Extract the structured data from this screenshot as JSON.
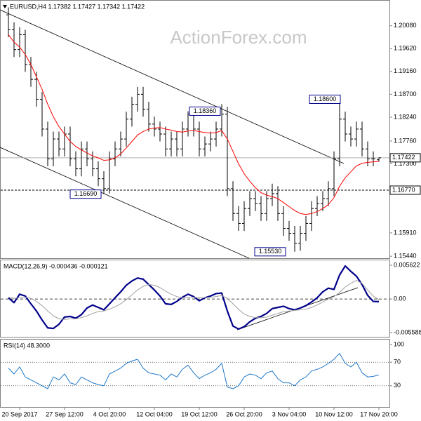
{
  "chart_data": [
    {
      "type": "ohlc",
      "title": "EURUSD,H4  1.17382 1.17427 1.17342 1.17422",
      "watermark": "ActionForex.com",
      "color": "#000000",
      "categories": [
        null,
        null,
        "20 Sep 2017",
        null,
        null,
        null,
        null,
        null,
        null,
        null,
        "27 Sep 12:00",
        null,
        null,
        null,
        null,
        null,
        null,
        null,
        "4 Oct 20:00",
        null,
        null,
        null,
        null,
        null,
        null,
        null,
        "12 Oct 04:00",
        null,
        null,
        null,
        null,
        null,
        null,
        null,
        "19 Oct 12:00",
        null,
        null,
        null,
        null,
        null,
        null,
        null,
        "26 Oct 20:00",
        null,
        null,
        null,
        null,
        null,
        null,
        null,
        "3 Nov 04:00",
        null,
        null,
        null,
        null,
        null,
        null,
        null,
        "10 Nov 12:00",
        null,
        null,
        null,
        null,
        null,
        null,
        null,
        "17 Nov 20:00"
      ],
      "open": [
        1.203,
        1.2,
        1.196,
        1.199,
        1.193,
        1.19,
        1.186,
        1.18,
        1.174,
        1.178,
        1.176,
        1.179,
        1.174,
        1.172,
        1.176,
        1.174,
        1.172,
        1.17,
        1.168,
        1.174,
        1.176,
        1.178,
        1.182,
        1.185,
        1.187,
        1.184,
        1.181,
        1.18,
        1.179,
        1.176,
        1.178,
        1.176,
        1.18,
        1.183,
        1.18,
        1.176,
        1.177,
        1.178,
        1.18,
        1.183,
        1.168,
        1.163,
        1.161,
        1.164,
        1.166,
        1.165,
        1.163,
        1.166,
        1.167,
        1.163,
        1.16,
        1.159,
        1.157,
        1.159,
        1.161,
        1.164,
        1.165,
        1.166,
        1.168,
        1.174,
        1.182,
        1.179,
        1.178,
        1.18,
        1.176,
        1.174,
        1.17382
      ],
      "high": [
        1.2045,
        1.2015,
        1.2005,
        1.2,
        1.1945,
        1.1915,
        1.1875,
        1.1815,
        1.1795,
        1.1795,
        1.1805,
        1.1805,
        1.1755,
        1.1775,
        1.1775,
        1.1755,
        1.1735,
        1.1715,
        1.1755,
        1.1775,
        1.1795,
        1.1835,
        1.1865,
        1.1885,
        1.1885,
        1.1855,
        1.1825,
        1.1815,
        1.1805,
        1.1795,
        1.1795,
        1.1815,
        1.1836,
        1.1845,
        1.1815,
        1.1785,
        1.1795,
        1.1815,
        1.185,
        1.1845,
        1.1695,
        1.1645,
        1.1655,
        1.1675,
        1.1675,
        1.1665,
        1.1675,
        1.169,
        1.1685,
        1.1645,
        1.1615,
        1.1605,
        1.1605,
        1.1625,
        1.1655,
        1.1665,
        1.1675,
        1.1695,
        1.1755,
        1.186,
        1.1835,
        1.1805,
        1.1815,
        1.1815,
        1.1775,
        1.1755,
        1.17427
      ],
      "low": [
        1.1985,
        1.1945,
        1.1945,
        1.1915,
        1.1885,
        1.1845,
        1.1785,
        1.1725,
        1.1725,
        1.1745,
        1.1745,
        1.1725,
        1.1705,
        1.1705,
        1.1725,
        1.1705,
        1.1685,
        1.1669,
        1.167,
        1.1725,
        1.1745,
        1.1765,
        1.1805,
        1.1835,
        1.1825,
        1.1795,
        1.1785,
        1.1775,
        1.1745,
        1.1745,
        1.1745,
        1.1745,
        1.1785,
        1.1785,
        1.1745,
        1.1745,
        1.1755,
        1.1765,
        1.1785,
        1.1665,
        1.1615,
        1.1595,
        1.1595,
        1.1625,
        1.1635,
        1.1615,
        1.1615,
        1.1645,
        1.1615,
        1.1585,
        1.1575,
        1.1553,
        1.1555,
        1.1575,
        1.1595,
        1.1625,
        1.1635,
        1.1645,
        1.1665,
        1.1725,
        1.1775,
        1.1765,
        1.1765,
        1.1745,
        1.1725,
        1.1725,
        1.17342
      ],
      "close": [
        1.2,
        1.196,
        1.199,
        1.193,
        1.19,
        1.186,
        1.18,
        1.174,
        1.178,
        1.176,
        1.179,
        1.174,
        1.172,
        1.176,
        1.174,
        1.172,
        1.17,
        1.168,
        1.174,
        1.176,
        1.178,
        1.182,
        1.185,
        1.187,
        1.184,
        1.181,
        1.18,
        1.179,
        1.176,
        1.178,
        1.176,
        1.18,
        1.183,
        1.18,
        1.176,
        1.177,
        1.178,
        1.18,
        1.183,
        1.168,
        1.163,
        1.161,
        1.164,
        1.166,
        1.165,
        1.163,
        1.166,
        1.167,
        1.163,
        1.16,
        1.159,
        1.157,
        1.159,
        1.161,
        1.164,
        1.165,
        1.166,
        1.168,
        1.174,
        1.182,
        1.179,
        1.178,
        1.18,
        1.176,
        1.174,
        1.174,
        1.17422
      ],
      "ma": {
        "color": "#ff0000",
        "values": [
          1.199,
          1.1975,
          1.1965,
          1.195,
          1.193,
          1.1905,
          1.188,
          1.185,
          1.1825,
          1.1805,
          1.179,
          1.1775,
          1.1765,
          1.1758,
          1.1752,
          1.1746,
          1.1742,
          1.1737,
          1.1738,
          1.1742,
          1.175,
          1.1762,
          1.1775,
          1.1788,
          1.1795,
          1.18,
          1.1802,
          1.1803,
          1.18,
          1.1798,
          1.1795,
          1.1794,
          1.1796,
          1.1797,
          1.1795,
          1.1793,
          1.1792,
          1.1793,
          1.1797,
          1.178,
          1.1755,
          1.173,
          1.171,
          1.1695,
          1.1682,
          1.1672,
          1.1667,
          1.1664,
          1.166,
          1.1652,
          1.1644,
          1.1636,
          1.163,
          1.1628,
          1.163,
          1.1634,
          1.164,
          1.1648,
          1.1662,
          1.1685,
          1.1702,
          1.1714,
          1.1726,
          1.1731,
          1.1733,
          1.1734,
          1.1735
        ]
      },
      "ylim": [
        1.154,
        1.2057
      ],
      "yticks": [
        {
          "value": 1.2008,
          "label": "1.20080"
        },
        {
          "value": 1.1962,
          "label": "1.19620"
        },
        {
          "value": 1.1916,
          "label": "1.19160"
        },
        {
          "value": 1.187,
          "label": "1.18700"
        },
        {
          "value": 1.1824,
          "label": "1.18240"
        },
        {
          "value": 1.1776,
          "label": "1.17760"
        },
        {
          "value": 1.173,
          "label": "1.17300"
        },
        {
          "value": 1.1591,
          "label": "1.15910"
        },
        {
          "value": 1.1544,
          "label": "1.15440"
        }
      ],
      "current_price": 1.17422,
      "levels": [
        {
          "value": 1.1677,
          "label": "1.16770"
        }
      ],
      "annotations": [
        {
          "value": 1.1669,
          "label": "1.16690"
        },
        {
          "value": 1.1836,
          "label": "1.18360"
        },
        {
          "value": 1.1553,
          "label": "1.15530"
        },
        {
          "value": 1.186,
          "label": "1.18600"
        }
      ],
      "grid": false
    },
    {
      "type": "line",
      "title": "MACD(12,26,9) -0.000436 -0.000121",
      "series": [
        {
          "color": "#00008b",
          "width": 2.2,
          "values": [
            0.0002,
            -0.0006,
            0.0008,
            0.0005,
            -0.0008,
            -0.002,
            -0.0035,
            -0.0048,
            -0.0049,
            -0.0042,
            -0.003,
            -0.0029,
            -0.0032,
            -0.0026,
            -0.0015,
            -0.001,
            -0.0014,
            -0.0018,
            -0.0008,
            0.0002,
            0.0012,
            0.0023,
            0.003,
            0.0035,
            0.0033,
            0.0024,
            0.0015,
            0.0005,
            -0.0008,
            -0.0009,
            -0.0004,
            0.0003,
            0.0008,
            0.0004,
            -0.0003,
            0.0002,
            0.0005,
            0.0009,
            0.001,
            -0.002,
            -0.0045,
            -0.005,
            -0.0046,
            -0.0038,
            -0.0032,
            -0.0029,
            -0.0024,
            -0.0016,
            -0.0014,
            -0.0012,
            -0.0016,
            -0.0018,
            -0.0015,
            -0.0011,
            -0.0005,
            0.0002,
            0.0012,
            0.0018,
            0.0016,
            0.004,
            0.0055,
            0.0046,
            0.0038,
            0.0024,
            0.0006,
            -0.0004,
            -0.000436
          ]
        },
        {
          "color": "#a0a0a0",
          "width": 1,
          "values": [
            0.0003,
            0.0001,
            0.0002,
            0.0003,
            0.0001,
            -0.0004,
            -0.0011,
            -0.002,
            -0.0028,
            -0.0033,
            -0.0034,
            -0.0033,
            -0.0033,
            -0.0031,
            -0.0028,
            -0.0024,
            -0.0021,
            -0.002,
            -0.0017,
            -0.0013,
            -0.0008,
            -0.0001,
            0.0007,
            0.0015,
            0.0021,
            0.0024,
            0.0023,
            0.0019,
            0.0013,
            0.0008,
            0.0004,
            0.0002,
            0.0003,
            0.0003,
            0.0002,
            0.0002,
            0.0003,
            0.0004,
            0.0006,
            0.0001,
            -0.0008,
            -0.0017,
            -0.0025,
            -0.0029,
            -0.0031,
            -0.0031,
            -0.003,
            -0.0027,
            -0.0024,
            -0.0021,
            -0.002,
            -0.0019,
            -0.0018,
            -0.0017,
            -0.0014,
            -0.001,
            -0.0005,
            0.0,
            0.0004,
            0.0011,
            0.002,
            0.0026,
            0.0031,
            0.0026,
            0.0015,
            0.0005,
            -0.000121
          ]
        }
      ],
      "ylim": [
        -0.005588,
        0.005622
      ],
      "yticks": [
        0.005622,
        {
          "value": 0,
          "label": "0.00"
        },
        -0.005588
      ],
      "grid": true,
      "grid_style": "dashed"
    },
    {
      "type": "line",
      "title": "RSI(14) 48.3000",
      "series": [
        {
          "color": "#1e78c8",
          "width": 1,
          "values": [
            60,
            50,
            62,
            45,
            40,
            35,
            30,
            25,
            45,
            40,
            50,
            35,
            32,
            45,
            40,
            35,
            32,
            30,
            50,
            55,
            60,
            68,
            72,
            75,
            60,
            52,
            50,
            48,
            40,
            50,
            45,
            58,
            65,
            52,
            42,
            48,
            52,
            58,
            68,
            28,
            25,
            30,
            45,
            50,
            48,
            42,
            52,
            55,
            42,
            35,
            35,
            30,
            40,
            45,
            55,
            58,
            62,
            68,
            75,
            85,
            68,
            62,
            70,
            52,
            45,
            46,
            48.3
          ]
        }
      ],
      "ylim": [
        0,
        100
      ],
      "yticks": [
        100,
        70,
        30
      ],
      "grid": true,
      "grid_style": "dotted"
    }
  ]
}
